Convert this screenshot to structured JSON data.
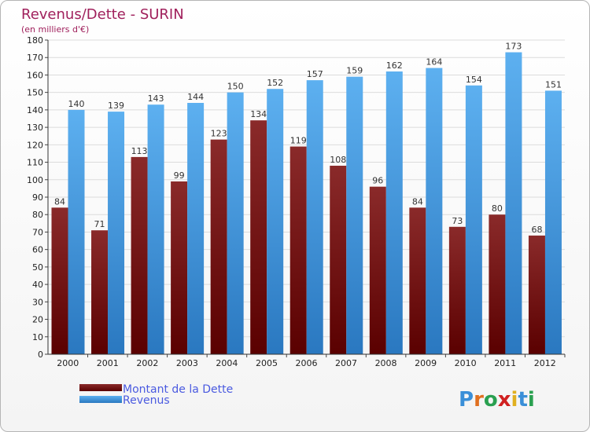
{
  "chart_data": {
    "type": "bar",
    "title": "Revenus/Dette - SURIN",
    "subtitle": "(en milliers d'€)",
    "categories": [
      "2000",
      "2001",
      "2002",
      "2003",
      "2004",
      "2005",
      "2006",
      "2007",
      "2008",
      "2009",
      "2010",
      "2011",
      "2012"
    ],
    "series": [
      {
        "name": "Montant de la Dette",
        "values": [
          84,
          71,
          113,
          99,
          123,
          134,
          119,
          108,
          96,
          84,
          73,
          80,
          68
        ],
        "color": "#7a1414"
      },
      {
        "name": "Revenus",
        "values": [
          140,
          139,
          143,
          144,
          150,
          152,
          157,
          159,
          162,
          164,
          154,
          173,
          151
        ],
        "color": "#4aa3e8"
      }
    ],
    "ylim": [
      0,
      180
    ],
    "ytick_step": 10,
    "grid": true,
    "legend": "bottom-left"
  },
  "logo": {
    "text": "Proxiti",
    "letter_colors": [
      "#3a8fd8",
      "#e07020",
      "#2aa050",
      "#d02020",
      "#e0b020",
      "#3a8fd8",
      "#2aa050"
    ]
  }
}
